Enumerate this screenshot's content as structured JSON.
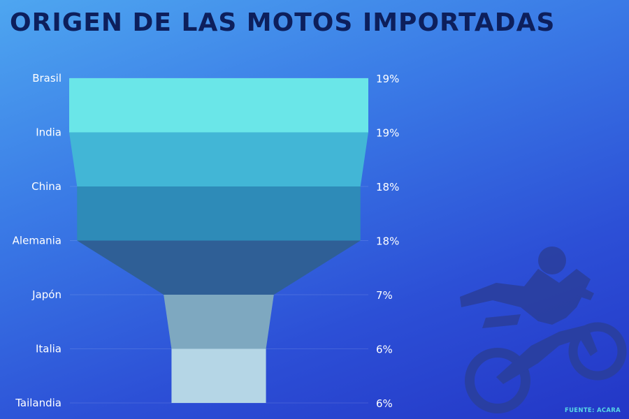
{
  "chart_data": {
    "type": "funnel",
    "title": "ORIGEN DE LAS MOTOS IMPORTADAS",
    "categories": [
      "Brasil",
      "India",
      "China",
      "Alemania",
      "Japón",
      "Italia",
      "Tailandia"
    ],
    "values": [
      19,
      19,
      18,
      18,
      7,
      6,
      6
    ],
    "value_labels": [
      "19%",
      "19%",
      "18%",
      "18%",
      "7%",
      "6%",
      "6%"
    ],
    "segment_colors": [
      "#6ae6e8",
      "#42b6d6",
      "#2e8bb8",
      "#2f5f96",
      "#7ea8c0",
      "#b5d6e6"
    ],
    "grid": true
  },
  "source": "FUENTE: ACARA",
  "decoration": "motocross-rider-silhouette"
}
